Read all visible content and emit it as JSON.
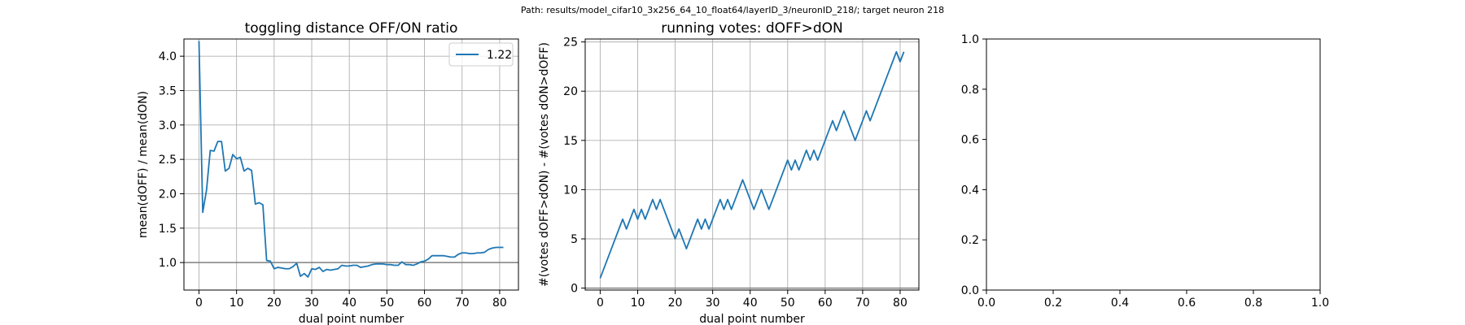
{
  "suptitle": "Path: results/model_cifar10_3x256_64_10_float64/layerID_3/neuronID_218/; target neuron 218",
  "colors": {
    "line": "#1f77b4",
    "grid": "#b0b0b0",
    "refline": "#808080",
    "axes": "#000000"
  },
  "chart_data": [
    {
      "type": "line",
      "title": "toggling distance OFF/ON ratio",
      "xlabel": "dual point number",
      "ylabel": "mean(dOFF) / mean(dON)",
      "xlim": [
        -4,
        85
      ],
      "ylim": [
        0.6,
        4.25
      ],
      "xticks": [
        0,
        10,
        20,
        30,
        40,
        50,
        60,
        70,
        80
      ],
      "yticks": [
        1.0,
        1.5,
        2.0,
        2.5,
        3.0,
        3.5,
        4.0
      ],
      "ytick_labels": [
        "1.0",
        "1.5",
        "2.0",
        "2.5",
        "3.0",
        "3.5",
        "4.0"
      ],
      "grid": true,
      "legend": {
        "position": "top-right",
        "entries": [
          "1.22"
        ]
      },
      "reference_line": 1.0,
      "series": [
        {
          "name": "1.22",
          "x": [
            0,
            1,
            2,
            3,
            4,
            5,
            6,
            7,
            8,
            9,
            10,
            11,
            12,
            13,
            14,
            15,
            16,
            17,
            18,
            19,
            20,
            21,
            22,
            23,
            24,
            25,
            26,
            27,
            28,
            29,
            30,
            31,
            32,
            33,
            34,
            35,
            36,
            37,
            38,
            39,
            40,
            41,
            42,
            43,
            44,
            45,
            46,
            47,
            48,
            49,
            50,
            51,
            52,
            53,
            54,
            55,
            56,
            57,
            58,
            59,
            60,
            61,
            62,
            63,
            64,
            65,
            66,
            67,
            68,
            69,
            70,
            71,
            72,
            73,
            74,
            75,
            76,
            77,
            78,
            79,
            80,
            81
          ],
          "y": [
            4.22,
            1.73,
            2.05,
            2.63,
            2.62,
            2.76,
            2.76,
            2.33,
            2.37,
            2.57,
            2.51,
            2.53,
            2.33,
            2.37,
            2.34,
            1.85,
            1.87,
            1.84,
            1.03,
            1.02,
            0.91,
            0.93,
            0.92,
            0.91,
            0.91,
            0.94,
            0.99,
            0.8,
            0.84,
            0.79,
            0.91,
            0.9,
            0.93,
            0.87,
            0.9,
            0.89,
            0.9,
            0.91,
            0.96,
            0.95,
            0.95,
            0.96,
            0.96,
            0.93,
            0.94,
            0.95,
            0.97,
            0.98,
            0.98,
            0.98,
            0.97,
            0.97,
            0.96,
            0.96,
            1.01,
            0.97,
            0.97,
            0.96,
            0.98,
            1.01,
            1.02,
            1.05,
            1.1,
            1.1,
            1.1,
            1.1,
            1.09,
            1.08,
            1.08,
            1.12,
            1.14,
            1.14,
            1.13,
            1.13,
            1.14,
            1.14,
            1.15,
            1.19,
            1.21,
            1.22,
            1.22,
            1.22
          ]
        }
      ]
    },
    {
      "type": "line",
      "title": "running votes: dOFF>dON",
      "xlabel": "dual point number",
      "ylabel": "#(votes dOFF>dON) - #(votes dON>dOFF)",
      "xlim": [
        -4,
        85
      ],
      "ylim": [
        -0.2,
        25.3
      ],
      "xticks": [
        0,
        10,
        20,
        30,
        40,
        50,
        60,
        70,
        80
      ],
      "yticks": [
        0,
        5,
        10,
        15,
        20,
        25
      ],
      "ytick_labels": [
        "0",
        "5",
        "10",
        "15",
        "20",
        "25"
      ],
      "grid": true,
      "reference_line": 0,
      "series": [
        {
          "x": [
            0,
            1,
            2,
            3,
            4,
            5,
            6,
            7,
            8,
            9,
            10,
            11,
            12,
            13,
            14,
            15,
            16,
            17,
            18,
            19,
            20,
            21,
            22,
            23,
            24,
            25,
            26,
            27,
            28,
            29,
            30,
            31,
            32,
            33,
            34,
            35,
            36,
            37,
            38,
            39,
            40,
            41,
            42,
            43,
            44,
            45,
            46,
            47,
            48,
            49,
            50,
            51,
            52,
            53,
            54,
            55,
            56,
            57,
            58,
            59,
            60,
            61,
            62,
            63,
            64,
            65,
            66,
            67,
            68,
            69,
            70,
            71,
            72,
            73,
            74,
            75,
            76,
            77,
            78,
            79,
            80,
            81
          ],
          "y": [
            1,
            2,
            3,
            4,
            5,
            6,
            7,
            6,
            7,
            8,
            7,
            8,
            7,
            8,
            9,
            8,
            9,
            8,
            7,
            6,
            5,
            6,
            5,
            4,
            5,
            6,
            7,
            6,
            7,
            6,
            7,
            8,
            9,
            8,
            9,
            8,
            9,
            10,
            11,
            10,
            9,
            8,
            9,
            10,
            9,
            8,
            9,
            10,
            11,
            12,
            13,
            12,
            13,
            12,
            13,
            14,
            13,
            14,
            13,
            14,
            15,
            16,
            17,
            16,
            17,
            18,
            17,
            16,
            15,
            16,
            17,
            18,
            17,
            18,
            19,
            20,
            21,
            22,
            23,
            24,
            23,
            24
          ]
        }
      ]
    },
    {
      "type": "line",
      "title": "",
      "xlabel": "",
      "ylabel": "",
      "xlim": [
        0,
        1
      ],
      "ylim": [
        0,
        1
      ],
      "xticks": [
        0,
        0.2,
        0.4,
        0.6,
        0.8,
        1.0
      ],
      "xtick_labels": [
        "0.0",
        "0.2",
        "0.4",
        "0.6",
        "0.8",
        "1.0"
      ],
      "yticks": [
        0,
        0.2,
        0.4,
        0.6,
        0.8,
        1.0
      ],
      "ytick_labels": [
        "0.0",
        "0.2",
        "0.4",
        "0.6",
        "0.8",
        "1.0"
      ],
      "grid": false,
      "series": []
    }
  ]
}
